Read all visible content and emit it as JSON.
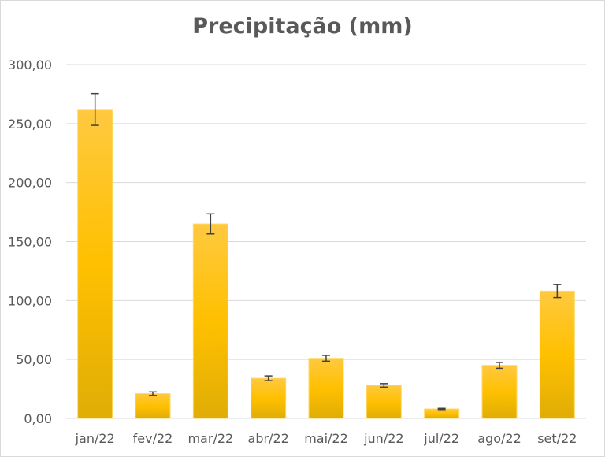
{
  "chart_data": {
    "type": "bar",
    "title": "Precipitação (mm)",
    "xlabel": "",
    "ylabel": "",
    "categories": [
      "jan/22",
      "fev/22",
      "mar/22",
      "abr/22",
      "mai/22",
      "jun/22",
      "jul/22",
      "ago/22",
      "set/22"
    ],
    "values": [
      262,
      21,
      165,
      34,
      51,
      28,
      8,
      45,
      108
    ],
    "error": [
      13.5,
      1.5,
      8.5,
      2,
      2.5,
      1.5,
      0.5,
      2.5,
      5.5
    ],
    "ylim": [
      0,
      300
    ],
    "yticks": [
      0,
      50,
      100,
      150,
      200,
      250,
      300
    ],
    "ytick_labels": [
      "0,00",
      "50,00",
      "100,00",
      "150,00",
      "200,00",
      "250,00",
      "300,00"
    ],
    "grid": true,
    "legend": "none",
    "colors": {
      "bar_top": "#ffc940",
      "bar_mid": "#ffc000",
      "bar_bottom": "#e0ad06",
      "grid": "#d9d9d9",
      "error_bar": "#404040",
      "text": "#595959"
    }
  }
}
